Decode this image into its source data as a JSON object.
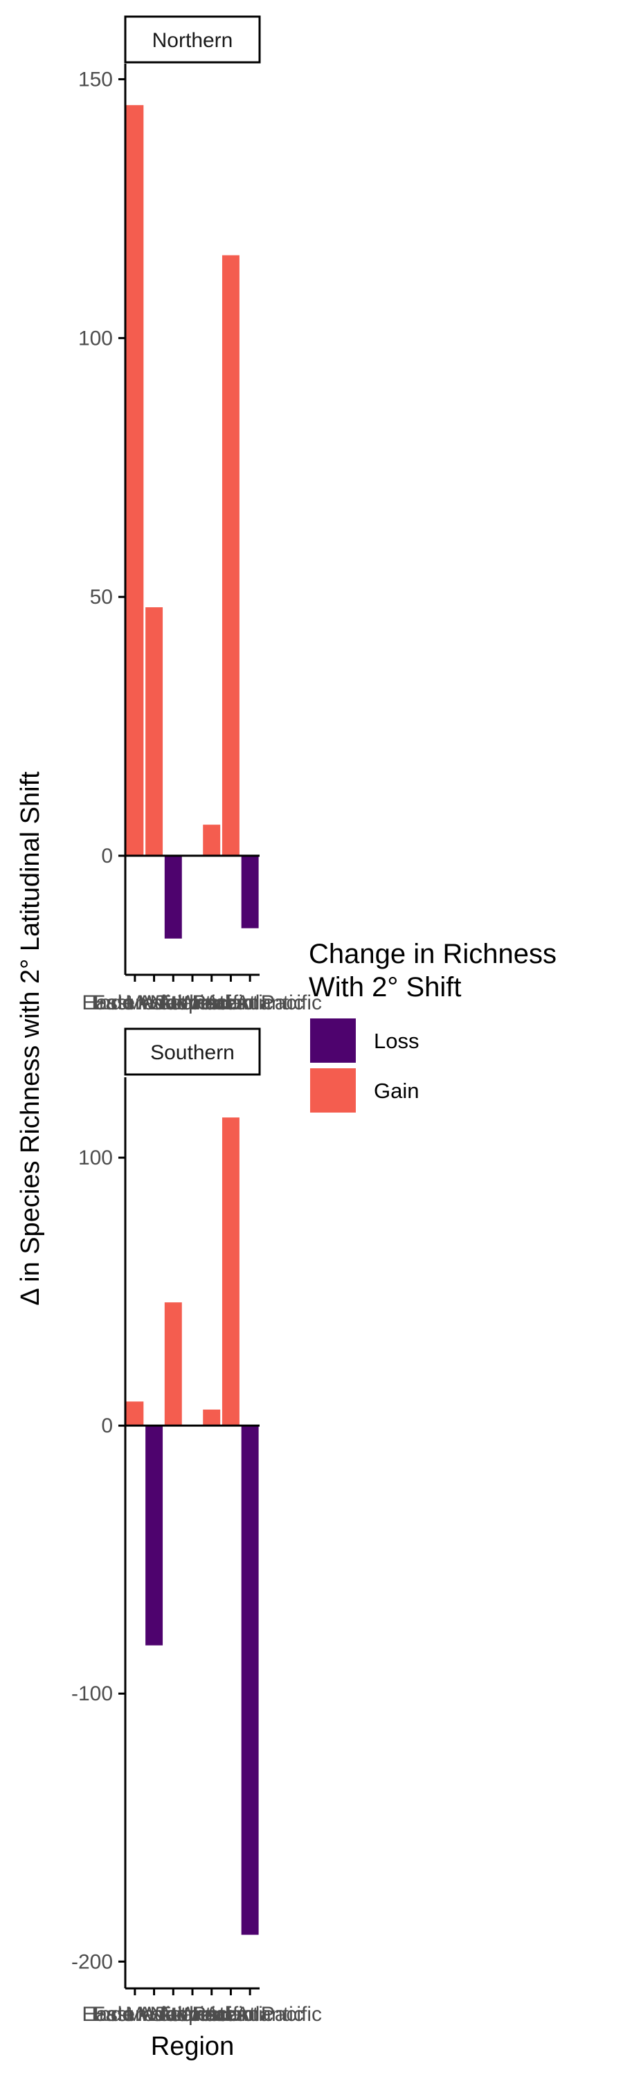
{
  "chart_data": {
    "type": "bar",
    "xlabel": "Region",
    "ylabel": "Δ in Species Richness with 2° Latitudinal Shift",
    "categories": [
      "East Asia",
      "Eastern Atlantic",
      "Indo West Pacific",
      "Mediterranean",
      "North Atlantic",
      "Tropical Atlantic",
      "Western Pacific"
    ],
    "legend": {
      "title_lines": [
        "Change in Richness",
        "With 2° Shift"
      ],
      "position": "right",
      "entries": [
        {
          "key": "loss",
          "label": "Loss",
          "color": "#4E036E"
        },
        {
          "key": "gain",
          "label": "Gain",
          "color": "#F45D4F"
        }
      ]
    },
    "grid": false,
    "panels": [
      {
        "strip": "Northern",
        "ylim": [
          -23,
          153
        ],
        "yticks": [
          0,
          50,
          100,
          150
        ],
        "values": [
          145,
          48,
          -16,
          0,
          6,
          116,
          -14
        ]
      },
      {
        "strip": "Southern",
        "ylim": [
          -210,
          130
        ],
        "yticks": [
          -200,
          -100,
          0,
          100
        ],
        "values": [
          9,
          -82,
          46,
          0,
          6,
          115,
          -190
        ]
      }
    ]
  }
}
